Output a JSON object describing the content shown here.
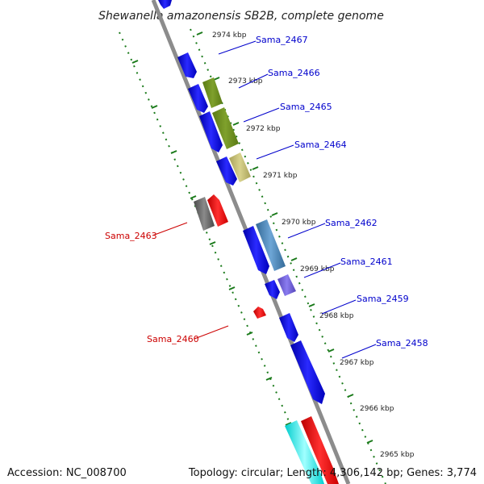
{
  "title": "Shewanella amazonensis SB2B, complete genome",
  "ticks": [
    "2974 kbp",
    "2973 kbp",
    "2972 kbp",
    "2971 kbp",
    "2970 kbp",
    "2969 kbp",
    "2968 kbp",
    "2967 kbp",
    "2966 kbp",
    "2965 kbp"
  ],
  "genes": [
    {
      "name": "Sama_2467",
      "color": "#0000cc"
    },
    {
      "name": "Sama_2466",
      "color": "#0000cc"
    },
    {
      "name": "Sama_2465",
      "color": "#0000cc"
    },
    {
      "name": "Sama_2464",
      "color": "#0000cc"
    },
    {
      "name": "Sama_2463",
      "color": "#cc0000"
    },
    {
      "name": "Sama_2462",
      "color": "#0000cc"
    },
    {
      "name": "Sama_2461",
      "color": "#0000cc"
    },
    {
      "name": "Sama_2460",
      "color": "#cc0000"
    },
    {
      "name": "Sama_2459",
      "color": "#0000cc"
    },
    {
      "name": "Sama_2458",
      "color": "#0000cc"
    }
  ],
  "colors": {
    "backbone": "#8a8a8a",
    "dotted_ring": "#1a7a1a",
    "forward_cds": "#0000ff",
    "reverse_cds": "#ff0000",
    "olive_feature": "#6b8e23",
    "khaki_feature": "#bdb76b",
    "steel_feature": "#4682b4",
    "slate_feature": "#6a5acd",
    "gray_feature": "#666666",
    "cyan_feature": "#00ffff"
  },
  "footer": {
    "accession": "Accession: NC_008700",
    "summary": "Topology: circular; Length: 4,306,142 bp; Genes: 3,774"
  }
}
